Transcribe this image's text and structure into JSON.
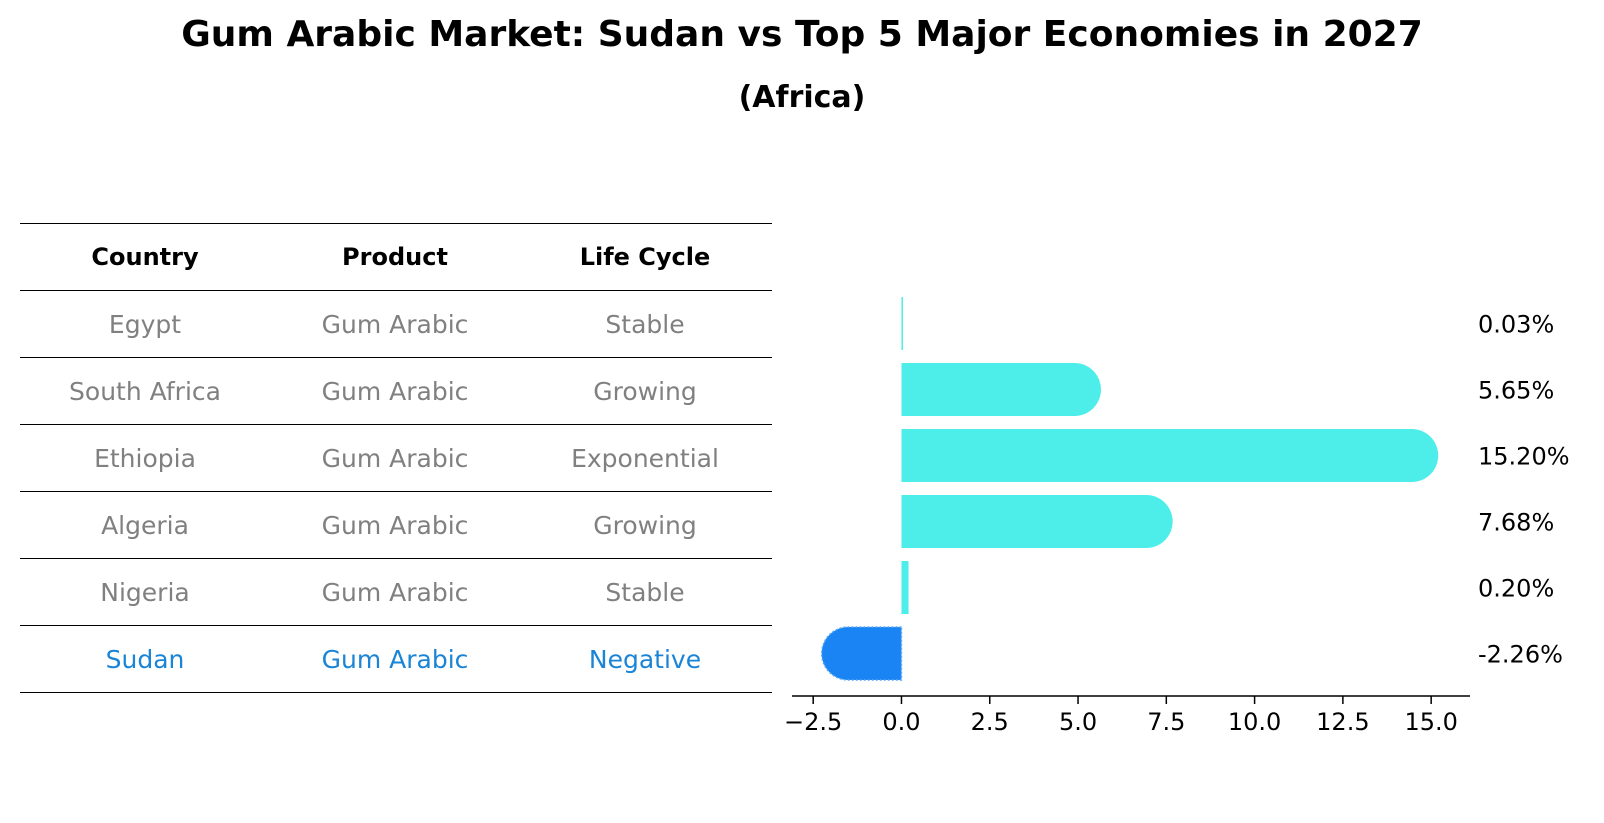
{
  "title": "Gum Arabic Market: Sudan vs Top 5 Major Economies in 2027",
  "subtitle": "(Africa)",
  "colors": {
    "bar": "#4dede9",
    "highlight": "#1a84f5",
    "muted_text": "#808080",
    "highlight_text": "#1a84d6"
  },
  "table": {
    "headers": [
      "Country",
      "Product",
      "Life Cycle"
    ],
    "rows": [
      [
        "Egypt",
        "Gum Arabic",
        "Stable"
      ],
      [
        "South Africa",
        "Gum Arabic",
        "Growing"
      ],
      [
        "Ethiopia",
        "Gum Arabic",
        "Exponential"
      ],
      [
        "Algeria",
        "Gum Arabic",
        "Growing"
      ],
      [
        "Nigeria",
        "Gum Arabic",
        "Stable"
      ],
      [
        "Sudan",
        "Gum Arabic",
        "Negative"
      ]
    ]
  },
  "chart_data": {
    "type": "bar",
    "orientation": "horizontal",
    "categories": [
      "Egypt",
      "South Africa",
      "Ethiopia",
      "Algeria",
      "Nigeria",
      "Sudan"
    ],
    "values": [
      0.03,
      5.65,
      15.2,
      7.68,
      0.2,
      -2.26
    ],
    "labels": [
      "0.03%",
      "5.65%",
      "15.20%",
      "7.68%",
      "0.20%",
      "-2.26%"
    ],
    "highlight": "Sudan",
    "xlim": [
      -3.1,
      16.1
    ],
    "xticks": [
      -2.5,
      0.0,
      2.5,
      5.0,
      7.5,
      10.0,
      12.5,
      15.0
    ],
    "xtick_labels": [
      "−2.5",
      "0.0",
      "2.5",
      "5.0",
      "7.5",
      "10.0",
      "12.5",
      "15.0"
    ]
  }
}
